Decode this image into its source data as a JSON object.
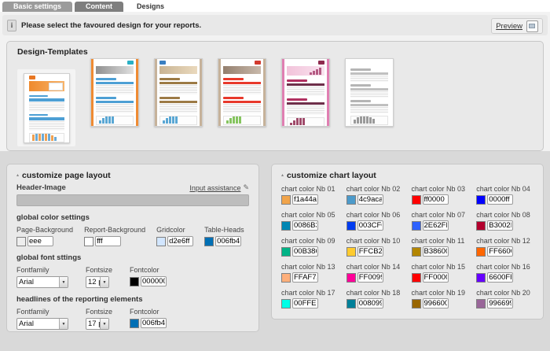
{
  "tabs": [
    {
      "label": "Basic settings",
      "active": false
    },
    {
      "label": "Content",
      "active": false
    },
    {
      "label": "Designs",
      "active": true
    }
  ],
  "info_bar": {
    "message": "Please select the favoured design for your reports.",
    "preview_label": "Preview"
  },
  "icons": {
    "info": "i",
    "collapse": "▴",
    "dropdown": "▼",
    "edit": "✎"
  },
  "design_templates": {
    "title": "Design-Templates",
    "templates": [
      {
        "selected": true,
        "side": null,
        "logo": {
          "color": "#e87722",
          "side": "left"
        },
        "header": {
          "colors": [
            "#ef8a2d",
            "#f7b369"
          ],
          "height": 13,
          "white_box": true
        },
        "accent": "#4d9fd4",
        "table_head": "#4d9fd4",
        "tables": 2,
        "chart": {
          "bars": [
            8,
            12,
            16,
            19,
            14,
            10,
            7,
            5
          ],
          "colors": [
            "#f0a050",
            "#6aaad6"
          ]
        }
      },
      {
        "selected": false,
        "side": "#ef8b33",
        "logo": {
          "color": "#2ab0c5",
          "side": "right"
        },
        "header": {
          "colors": [
            "#8f8f8f",
            "#e0e0e0"
          ],
          "height": 10
        },
        "accent": "#4d9fd4",
        "table_head": "#4d9fd4",
        "tables": 2,
        "chart": {
          "bars": [
            4,
            7,
            10,
            13,
            16
          ],
          "colors": [
            "#5aa7d4"
          ]
        }
      },
      {
        "selected": false,
        "side": "#c6b29a",
        "logo": {
          "color": "#3a7fc1",
          "side": "left"
        },
        "header": {
          "colors": [
            "#c9b493",
            "#ead9bd"
          ],
          "height": 10
        },
        "accent": "#9c7a45",
        "table_head": "#9c7a45",
        "tables": 2,
        "chart": {
          "bars": [
            4,
            7,
            10,
            13,
            16
          ],
          "colors": [
            "#5aa7d4"
          ]
        }
      },
      {
        "selected": false,
        "side": "#c6b29a",
        "logo": {
          "color": "#d23a2e",
          "side": "right"
        },
        "header": {
          "colors": [
            "#937f6e",
            "#c9b9ab"
          ],
          "height": 10
        },
        "accent": "#e8392b",
        "table_head": "#e8392b",
        "tables": 2,
        "chart": {
          "bars": [
            4,
            7,
            10,
            13,
            16
          ],
          "colors": [
            "#85c45f"
          ]
        }
      },
      {
        "selected": false,
        "side": "#e07fb2",
        "logo": {
          "color": "#8e2b4e",
          "side": "right"
        },
        "header": {
          "colors": [
            "#f2c3da",
            "#f9e3ef"
          ],
          "height": 12,
          "header_bars": "#b45a82"
        },
        "accent": "#b03060",
        "table_head": "#6e2f4a",
        "tables": 2,
        "chart": {
          "bars": [
            3,
            6,
            9,
            12,
            15
          ],
          "colors": [
            "#a04a6a"
          ]
        }
      },
      {
        "selected": false,
        "side": null,
        "logo": null,
        "header": null,
        "accent": "#b5b5b5",
        "table_head": "#c0c0c0",
        "tables": 3,
        "chart": {
          "bars": [
            5,
            8,
            11,
            13,
            10,
            8,
            6
          ],
          "colors": [
            "#9a9a9a"
          ]
        }
      }
    ]
  },
  "page_layout_panel": {
    "title": "customize page layout",
    "header_image": {
      "label": "Header-Image",
      "assistance_label": "Input assistance"
    },
    "color_settings": {
      "title": "global color settings",
      "fields": [
        {
          "label": "Page-Background",
          "value": "eee"
        },
        {
          "label": "Report-Background",
          "value": "fff"
        },
        {
          "label": "Gridcolor",
          "value": "d2e6ff"
        },
        {
          "label": "Table-Heads",
          "value": "006fb4"
        }
      ]
    },
    "font_settings": {
      "title": "global font sttings",
      "fontfamily_label": "Fontfamily",
      "fontsize_label": "Fontsize",
      "fontcolor_label": "Fontcolor",
      "fontfamily": "Arial",
      "fontsize": "12 px",
      "fontcolor": "000000"
    },
    "headline_settings": {
      "title": "headlines of the reporting elements",
      "fontfamily_label": "Fontfamily",
      "fontsize_label": "Fontsize",
      "fontcolor_label": "Fontcolor",
      "fontfamily": "Arial",
      "fontsize": "17 px",
      "fontcolor": "006fb4"
    }
  },
  "chart_layout_panel": {
    "title": "customize chart layout",
    "colors": [
      {
        "label": "chart color Nb 01",
        "value": "f1a44a"
      },
      {
        "label": "chart color Nb 02",
        "value": "4c9aca"
      },
      {
        "label": "chart color Nb 03",
        "value": "ff0000"
      },
      {
        "label": "chart color Nb 04",
        "value": "0000ff"
      },
      {
        "label": "chart color Nb 05",
        "value": "0086B3"
      },
      {
        "label": "chart color Nb 06",
        "value": "003CF0"
      },
      {
        "label": "chart color Nb 07",
        "value": "2E62FF"
      },
      {
        "label": "chart color Nb 08",
        "value": "B3002D"
      },
      {
        "label": "chart color Nb 09",
        "value": "00B386"
      },
      {
        "label": "chart color Nb 10",
        "value": "FFCB2E"
      },
      {
        "label": "chart color Nb 11",
        "value": "B38600"
      },
      {
        "label": "chart color Nb 12",
        "value": "FF6600"
      },
      {
        "label": "chart color Nb 13",
        "value": "FFAF7A"
      },
      {
        "label": "chart color Nb 14",
        "value": "FF0099"
      },
      {
        "label": "chart color Nb 15",
        "value": "FF0000"
      },
      {
        "label": "chart color Nb 16",
        "value": "6600FF"
      },
      {
        "label": "chart color Nb 17",
        "value": "00FFE6"
      },
      {
        "label": "chart color Nb 18",
        "value": "008099"
      },
      {
        "label": "chart color Nb 19",
        "value": "996600"
      },
      {
        "label": "chart color Nb 20",
        "value": "996699"
      }
    ]
  }
}
